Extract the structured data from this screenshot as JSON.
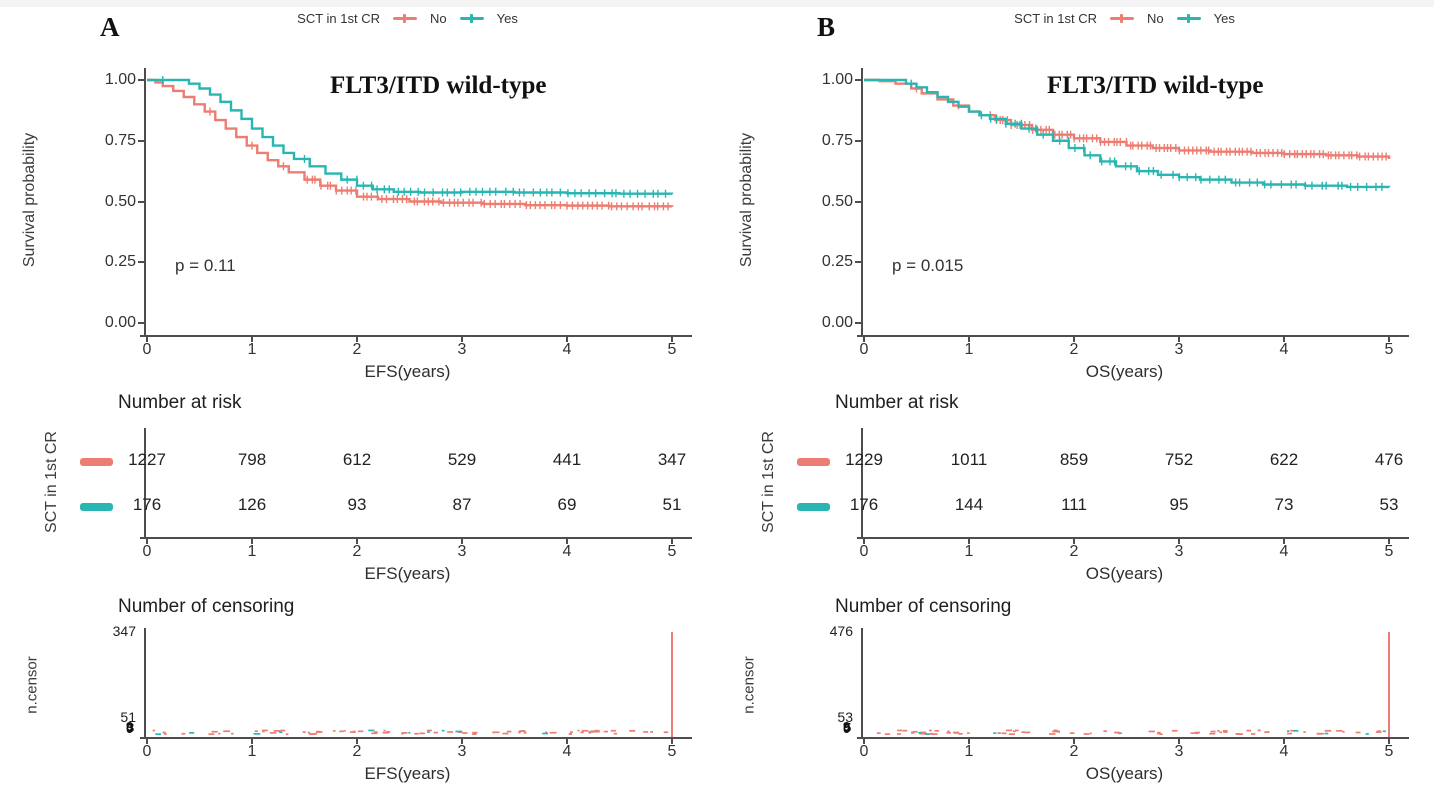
{
  "figure": {
    "legend": {
      "title": "SCT in 1st CR",
      "items": [
        {
          "label": "No",
          "color": "#ED7D72"
        },
        {
          "label": "Yes",
          "color": "#29B6B2"
        }
      ]
    },
    "panels": [
      {
        "label": "A"
      },
      {
        "label": "B"
      }
    ],
    "colors": {
      "no": "#ED7D72",
      "yes": "#29B6B2",
      "axis": "#4d4d4d"
    }
  },
  "chart_data": [
    {
      "type": "line",
      "subtype": "kaplan-meier",
      "title": "FLT3/ITD wild-type",
      "pvalue": "p = 0.11",
      "xlabel": "EFS(years)",
      "ylabel": "Survival probability",
      "xlim": [
        0,
        5
      ],
      "ylim": [
        0,
        1
      ],
      "xtick_labels": [
        "0",
        "1",
        "2",
        "3",
        "4",
        "5"
      ],
      "ytick_labels": [
        "1.00",
        "0.75",
        "0.50",
        "0.25",
        "0.00"
      ],
      "series": [
        {
          "name": "No",
          "color": "#ED7D72",
          "points": [
            [
              0,
              1.0
            ],
            [
              0.08,
              0.99
            ],
            [
              0.15,
              0.975
            ],
            [
              0.25,
              0.955
            ],
            [
              0.35,
              0.93
            ],
            [
              0.45,
              0.9
            ],
            [
              0.55,
              0.87
            ],
            [
              0.65,
              0.835
            ],
            [
              0.75,
              0.8
            ],
            [
              0.85,
              0.765
            ],
            [
              0.95,
              0.73
            ],
            [
              1.05,
              0.7
            ],
            [
              1.15,
              0.67
            ],
            [
              1.25,
              0.645
            ],
            [
              1.35,
              0.62
            ],
            [
              1.5,
              0.59
            ],
            [
              1.65,
              0.565
            ],
            [
              1.8,
              0.545
            ],
            [
              2.0,
              0.52
            ],
            [
              2.2,
              0.51
            ],
            [
              2.5,
              0.5
            ],
            [
              2.8,
              0.495
            ],
            [
              3.2,
              0.49
            ],
            [
              3.6,
              0.485
            ],
            [
              4.0,
              0.483
            ],
            [
              4.4,
              0.48
            ],
            [
              5.0,
              0.478
            ]
          ],
          "censor_ticks": {
            "from": 1.5,
            "to": 5.0,
            "count": 72
          },
          "censor_extra": [
            0.6,
            1.0,
            1.3
          ]
        },
        {
          "name": "Yes",
          "color": "#29B6B2",
          "points": [
            [
              0,
              1.0
            ],
            [
              0.3,
              1.0
            ],
            [
              0.4,
              0.985
            ],
            [
              0.5,
              0.965
            ],
            [
              0.6,
              0.94
            ],
            [
              0.7,
              0.91
            ],
            [
              0.8,
              0.875
            ],
            [
              0.9,
              0.84
            ],
            [
              1.0,
              0.8
            ],
            [
              1.1,
              0.765
            ],
            [
              1.2,
              0.73
            ],
            [
              1.3,
              0.7
            ],
            [
              1.4,
              0.675
            ],
            [
              1.55,
              0.645
            ],
            [
              1.7,
              0.615
            ],
            [
              1.85,
              0.59
            ],
            [
              2.0,
              0.565
            ],
            [
              2.15,
              0.55
            ],
            [
              2.35,
              0.54
            ],
            [
              2.6,
              0.537
            ],
            [
              3.0,
              0.54
            ],
            [
              3.5,
              0.537
            ],
            [
              4.0,
              0.534
            ],
            [
              4.5,
              0.532
            ],
            [
              5.0,
              0.53
            ]
          ],
          "censor_ticks": {
            "from": 1.9,
            "to": 5.0,
            "count": 46
          },
          "censor_extra": [
            0.15,
            1.5
          ]
        }
      ],
      "risk_table": {
        "title": "Number at risk",
        "group_label": "SCT in 1st CR",
        "categories": [
          0,
          1,
          2,
          3,
          4,
          5
        ],
        "rows": [
          {
            "name": "No",
            "color": "#ED7D72",
            "values": [
              "1227",
              "798",
              "612",
              "529",
              "441",
              "347"
            ]
          },
          {
            "name": "Yes",
            "color": "#29B6B2",
            "values": [
              "176",
              "126",
              "93",
              "87",
              "69",
              "51"
            ]
          }
        ]
      },
      "censor_plot": {
        "title": "Number of censoring",
        "ylabel": "n.censor",
        "ytick_labels": [
          "347",
          "51"
        ],
        "overlapped_ytick_labels": [
          "9",
          "3",
          "0"
        ],
        "ymax": 347,
        "spike": {
          "x": 5,
          "value": 347,
          "series": "No",
          "color": "#ED7D72"
        }
      }
    },
    {
      "type": "line",
      "subtype": "kaplan-meier",
      "title": "FLT3/ITD wild-type",
      "pvalue": "p = 0.015",
      "xlabel": "OS(years)",
      "ylabel": "Survival probability",
      "xlim": [
        0,
        5
      ],
      "ylim": [
        0,
        1
      ],
      "xtick_labels": [
        "0",
        "1",
        "2",
        "3",
        "4",
        "5"
      ],
      "ytick_labels": [
        "1.00",
        "0.75",
        "0.50",
        "0.25",
        "0.00"
      ],
      "series": [
        {
          "name": "No",
          "color": "#ED7D72",
          "points": [
            [
              0,
              1.0
            ],
            [
              0.15,
              0.995
            ],
            [
              0.3,
              0.985
            ],
            [
              0.45,
              0.965
            ],
            [
              0.55,
              0.945
            ],
            [
              0.7,
              0.92
            ],
            [
              0.85,
              0.895
            ],
            [
              1.0,
              0.87
            ],
            [
              1.1,
              0.855
            ],
            [
              1.25,
              0.835
            ],
            [
              1.4,
              0.815
            ],
            [
              1.6,
              0.795
            ],
            [
              1.8,
              0.775
            ],
            [
              2.0,
              0.76
            ],
            [
              2.25,
              0.745
            ],
            [
              2.5,
              0.73
            ],
            [
              2.75,
              0.72
            ],
            [
              3.0,
              0.71
            ],
            [
              3.3,
              0.705
            ],
            [
              3.7,
              0.7
            ],
            [
              4.0,
              0.695
            ],
            [
              4.4,
              0.69
            ],
            [
              4.7,
              0.685
            ],
            [
              5.0,
              0.675
            ]
          ],
          "censor_ticks": {
            "from": 1.2,
            "to": 5.0,
            "count": 95
          },
          "censor_extra": [
            0.5,
            0.9
          ]
        },
        {
          "name": "Yes",
          "color": "#29B6B2",
          "points": [
            [
              0,
              1.0
            ],
            [
              0.3,
              1.0
            ],
            [
              0.4,
              0.985
            ],
            [
              0.5,
              0.97
            ],
            [
              0.6,
              0.95
            ],
            [
              0.7,
              0.93
            ],
            [
              0.8,
              0.91
            ],
            [
              0.9,
              0.89
            ],
            [
              1.0,
              0.87
            ],
            [
              1.1,
              0.855
            ],
            [
              1.2,
              0.84
            ],
            [
              1.35,
              0.82
            ],
            [
              1.5,
              0.8
            ],
            [
              1.65,
              0.775
            ],
            [
              1.8,
              0.75
            ],
            [
              1.95,
              0.72
            ],
            [
              2.1,
              0.69
            ],
            [
              2.25,
              0.665
            ],
            [
              2.4,
              0.645
            ],
            [
              2.6,
              0.625
            ],
            [
              2.8,
              0.61
            ],
            [
              3.0,
              0.6
            ],
            [
              3.2,
              0.59
            ],
            [
              3.5,
              0.578
            ],
            [
              3.8,
              0.57
            ],
            [
              4.2,
              0.565
            ],
            [
              4.6,
              0.56
            ],
            [
              5.0,
              0.558
            ]
          ],
          "censor_ticks": {
            "from": 1.1,
            "to": 5.0,
            "count": 52
          },
          "censor_extra": [
            0.45
          ]
        }
      ],
      "risk_table": {
        "title": "Number at risk",
        "group_label": "SCT in 1st CR",
        "categories": [
          0,
          1,
          2,
          3,
          4,
          5
        ],
        "rows": [
          {
            "name": "No",
            "color": "#ED7D72",
            "values": [
              "1229",
              "1011",
              "859",
              "752",
              "622",
              "476"
            ]
          },
          {
            "name": "Yes",
            "color": "#29B6B2",
            "values": [
              "176",
              "144",
              "111",
              "95",
              "73",
              "53"
            ]
          }
        ]
      },
      "censor_plot": {
        "title": "Number of censoring",
        "ylabel": "n.censor",
        "ytick_labels": [
          "476",
          "53"
        ],
        "overlapped_ytick_labels": [
          "9",
          "5",
          "0"
        ],
        "ymax": 476,
        "spike": {
          "x": 5,
          "value": 476,
          "series": "No",
          "color": "#ED7D72"
        }
      }
    }
  ]
}
